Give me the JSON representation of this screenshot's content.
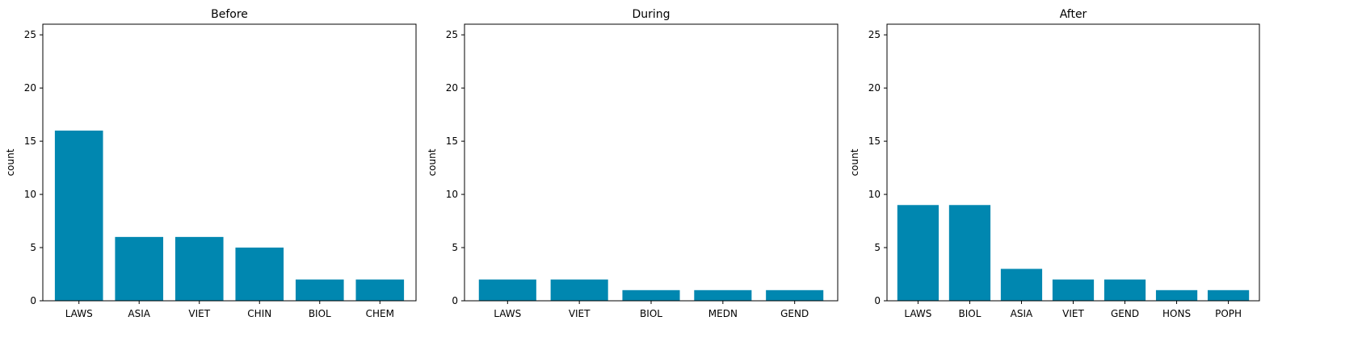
{
  "colors": {
    "bar": "#0087b0"
  },
  "chart_data": [
    {
      "type": "bar",
      "title": "Before",
      "xlabel": "",
      "ylabel": "count",
      "ylim": [
        0,
        26
      ],
      "yticks": [
        0,
        5,
        10,
        15,
        20,
        25
      ],
      "categories": [
        "LAWS",
        "ASIA",
        "VIET",
        "CHIN",
        "BIOL",
        "CHEM"
      ],
      "values": [
        16,
        6,
        6,
        5,
        2,
        2
      ]
    },
    {
      "type": "bar",
      "title": "During",
      "xlabel": "",
      "ylabel": "count",
      "ylim": [
        0,
        26
      ],
      "yticks": [
        0,
        5,
        10,
        15,
        20,
        25
      ],
      "categories": [
        "LAWS",
        "VIET",
        "BIOL",
        "MEDN",
        "GEND"
      ],
      "values": [
        2,
        2,
        1,
        1,
        1
      ]
    },
    {
      "type": "bar",
      "title": "After",
      "xlabel": "",
      "ylabel": "count",
      "ylim": [
        0,
        26
      ],
      "yticks": [
        0,
        5,
        10,
        15,
        20,
        25
      ],
      "categories": [
        "LAWS",
        "BIOL",
        "ASIA",
        "VIET",
        "GEND",
        "HONS",
        "POPH"
      ],
      "values": [
        9,
        9,
        3,
        2,
        2,
        1,
        1
      ]
    }
  ]
}
